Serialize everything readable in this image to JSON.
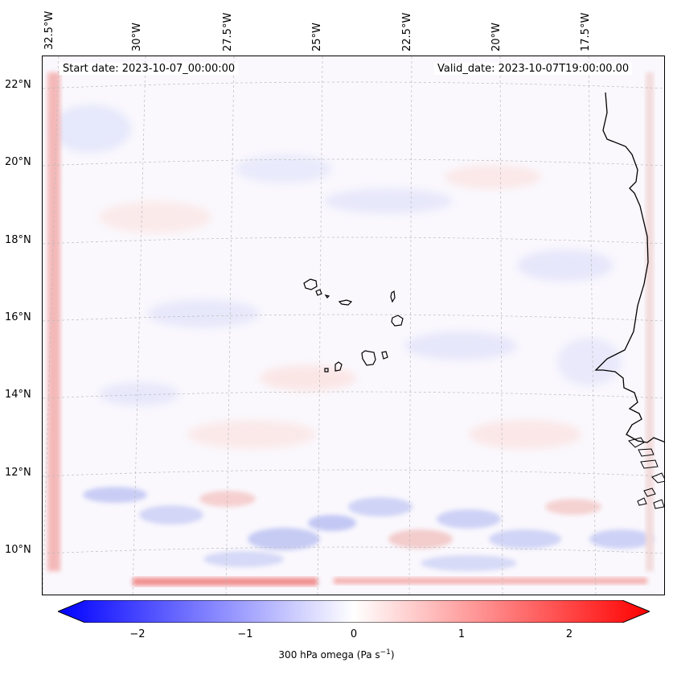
{
  "header": {
    "start_date": "Start date: 2023-10-07_00:00:00",
    "valid_date": "Valid_date: 2023-10-07T19:00:00.00"
  },
  "axes": {
    "longitude_labels": [
      "32.5°W",
      "30°W",
      "27.5°W",
      "25°W",
      "22.5°W",
      "20°W",
      "17.5°W"
    ],
    "latitude_labels": [
      "22°N",
      "20°N",
      "18°N",
      "16°N",
      "14°N",
      "12°N",
      "10°N"
    ]
  },
  "colorbar": {
    "label_main": "300 hPa omega (Pa s",
    "label_exp": "−1",
    "label_close": ")",
    "ticks": [
      "−2",
      "−1",
      "0",
      "1",
      "2"
    ],
    "min": -2.6,
    "max": 2.6,
    "colors": {
      "negative": "#0000ff",
      "zero": "#ffffff",
      "positive": "#ff0000"
    }
  },
  "map": {
    "field": "300 hPa omega",
    "land_outline_color": "#000000",
    "gridline_color": "#bbbbbb"
  }
}
